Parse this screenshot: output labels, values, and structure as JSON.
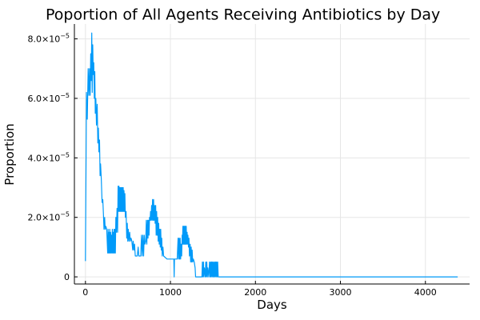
{
  "chart_data": {
    "type": "line",
    "title": "Poportion of All Agents Receiving Antibiotics by Day",
    "xlabel": "Days",
    "ylabel": "Proportion",
    "xlim": [
      -130,
      4520
    ],
    "ylim": [
      -2.4e-06,
      8.5e-05
    ],
    "x_ticks": [
      {
        "value": 0,
        "label": "0"
      },
      {
        "value": 1000,
        "label": "1000"
      },
      {
        "value": 2000,
        "label": "2000"
      },
      {
        "value": 3000,
        "label": "3000"
      },
      {
        "value": 4000,
        "label": "4000"
      }
    ],
    "y_ticks": [
      {
        "value": 0,
        "mant": "0",
        "exp": ""
      },
      {
        "value": 2e-05,
        "mant": "2.0×10",
        "exp": "−5"
      },
      {
        "value": 4e-05,
        "mant": "4.0×10",
        "exp": "−5"
      },
      {
        "value": 6e-05,
        "mant": "6.0×10",
        "exp": "−5"
      },
      {
        "value": 8e-05,
        "mant": "8.0×10",
        "exp": "−5"
      }
    ],
    "grid": true,
    "legend": false,
    "series": [
      {
        "color": "#009af9",
        "values": [
          [
            0,
            5.3e-06
          ],
          [
            12,
            6.2e-05
          ],
          [
            22,
            5.3e-05
          ],
          [
            32,
            7e-05
          ],
          [
            40,
            6.1e-05
          ],
          [
            48,
            7e-05
          ],
          [
            55,
            6.1e-05
          ],
          [
            62,
            7.5e-05
          ],
          [
            68,
            6.6e-05
          ],
          [
            74,
            8.2e-05
          ],
          [
            80,
            6.2e-05
          ],
          [
            86,
            7.8e-05
          ],
          [
            92,
            6.8e-05
          ],
          [
            98,
            7.2e-05
          ],
          [
            104,
            6e-05
          ],
          [
            110,
            6.9e-05
          ],
          [
            116,
            5.5e-05
          ],
          [
            122,
            6e-05
          ],
          [
            130,
            5.1e-05
          ],
          [
            138,
            5.8e-05
          ],
          [
            146,
            4.5e-05
          ],
          [
            152,
            5e-05
          ],
          [
            158,
            4.2e-05
          ],
          [
            166,
            4.6e-05
          ],
          [
            172,
            3.4e-05
          ],
          [
            178,
            3.8e-05
          ],
          [
            186,
            3.3e-05
          ],
          [
            196,
            2.5e-05
          ],
          [
            204,
            2.6e-05
          ],
          [
            212,
            2.1e-05
          ],
          [
            218,
            1.6e-05
          ],
          [
            226,
            2e-05
          ],
          [
            232,
            1.6e-05
          ],
          [
            240,
            1.7e-05
          ],
          [
            250,
            1.6e-05
          ],
          [
            262,
            8e-06
          ],
          [
            266,
            1.6e-05
          ],
          [
            272,
            8e-06
          ],
          [
            276,
            1.5e-05
          ],
          [
            282,
            8e-06
          ],
          [
            286,
            1.6e-05
          ],
          [
            292,
            8e-06
          ],
          [
            296,
            1.5e-05
          ],
          [
            302,
            8e-06
          ],
          [
            306,
            1.4e-05
          ],
          [
            312,
            8e-06
          ],
          [
            316,
            1.6e-05
          ],
          [
            322,
            8e-06
          ],
          [
            326,
            1.5e-05
          ],
          [
            332,
            8e-06
          ],
          [
            336,
            1.6e-05
          ],
          [
            342,
            8e-06
          ],
          [
            346,
            1.6e-05
          ],
          [
            352,
            8e-06
          ],
          [
            358,
            2e-05
          ],
          [
            364,
            1.5e-05
          ],
          [
            372,
            2.3e-05
          ],
          [
            378,
            1.5e-05
          ],
          [
            384,
            3.05e-05
          ],
          [
            388,
            2.2e-05
          ],
          [
            394,
            3.05e-05
          ],
          [
            398,
            2.2e-05
          ],
          [
            404,
            3e-05
          ],
          [
            408,
            2.2e-05
          ],
          [
            414,
            3e-05
          ],
          [
            418,
            2.2e-05
          ],
          [
            424,
            3e-05
          ],
          [
            428,
            2.2e-05
          ],
          [
            434,
            3e-05
          ],
          [
            438,
            2.2e-05
          ],
          [
            444,
            3e-05
          ],
          [
            448,
            2.2e-05
          ],
          [
            454,
            2.9e-05
          ],
          [
            458,
            2.2e-05
          ],
          [
            464,
            2.8e-05
          ],
          [
            470,
            2e-05
          ],
          [
            478,
            2.2e-05
          ],
          [
            486,
            1.3e-05
          ],
          [
            492,
            1.8e-05
          ],
          [
            498,
            1.2e-05
          ],
          [
            504,
            1.6e-05
          ],
          [
            512,
            1.2e-05
          ],
          [
            520,
            1.5e-05
          ],
          [
            528,
            1.2e-05
          ],
          [
            536,
            1.3e-05
          ],
          [
            546,
            1.2e-05
          ],
          [
            556,
            9e-06
          ],
          [
            562,
            1.2e-05
          ],
          [
            570,
            9e-06
          ],
          [
            578,
            1.1e-05
          ],
          [
            586,
            7e-06
          ],
          [
            610,
            7e-06
          ],
          [
            620,
            1e-05
          ],
          [
            628,
            7e-06
          ],
          [
            650,
            7e-06
          ],
          [
            660,
            1.4e-05
          ],
          [
            668,
            7e-06
          ],
          [
            676,
            1.4e-05
          ],
          [
            684,
            7e-06
          ],
          [
            692,
            1.4e-05
          ],
          [
            700,
            1.1e-05
          ],
          [
            710,
            1.2e-05
          ],
          [
            716,
            1.9e-05
          ],
          [
            722,
            1.1e-05
          ],
          [
            730,
            1.9e-05
          ],
          [
            736,
            1.3e-05
          ],
          [
            742,
            1.9e-05
          ],
          [
            748,
            1.4e-05
          ],
          [
            754,
            2e-05
          ],
          [
            760,
            1.9e-05
          ],
          [
            766,
            2.2e-05
          ],
          [
            772,
            1.9e-05
          ],
          [
            778,
            2.4e-05
          ],
          [
            784,
            1.9e-05
          ],
          [
            790,
            2.6e-05
          ],
          [
            796,
            1.9e-05
          ],
          [
            802,
            2.6e-05
          ],
          [
            808,
            1.9e-05
          ],
          [
            814,
            2.4e-05
          ],
          [
            820,
            1.8e-05
          ],
          [
            826,
            2.4e-05
          ],
          [
            832,
            1.4e-05
          ],
          [
            838,
            2.2e-05
          ],
          [
            844,
            1.4e-05
          ],
          [
            850,
            2e-05
          ],
          [
            856,
            1.2e-05
          ],
          [
            862,
            1.8e-05
          ],
          [
            868,
            1.1e-05
          ],
          [
            874,
            1.6e-05
          ],
          [
            880,
            1e-05
          ],
          [
            886,
            1.6e-05
          ],
          [
            892,
            9e-06
          ],
          [
            898,
            1.3e-05
          ],
          [
            904,
            7e-06
          ],
          [
            912,
            1e-05
          ],
          [
            920,
            7e-06
          ],
          [
            960,
            6e-06
          ],
          [
            1000,
            6e-06
          ],
          [
            1040,
            6e-06
          ],
          [
            1044,
            0
          ],
          [
            1048,
            6e-06
          ],
          [
            1080,
            6e-06
          ],
          [
            1090,
            1.3e-05
          ],
          [
            1096,
            6e-06
          ],
          [
            1102,
            1.3e-05
          ],
          [
            1108,
            6e-06
          ],
          [
            1114,
            1.3e-05
          ],
          [
            1120,
            6e-06
          ],
          [
            1126,
            1.1e-05
          ],
          [
            1132,
            7e-06
          ],
          [
            1138,
            1.4e-05
          ],
          [
            1142,
            1.1e-05
          ],
          [
            1146,
            1.7e-05
          ],
          [
            1150,
            1.1e-05
          ],
          [
            1154,
            1.7e-05
          ],
          [
            1158,
            1.1e-05
          ],
          [
            1162,
            1.7e-05
          ],
          [
            1166,
            1.1e-05
          ],
          [
            1170,
            1.7e-05
          ],
          [
            1174,
            1.1e-05
          ],
          [
            1178,
            1.7e-05
          ],
          [
            1182,
            1.1e-05
          ],
          [
            1186,
            1.7e-05
          ],
          [
            1190,
            1.1e-05
          ],
          [
            1196,
            1.5e-05
          ],
          [
            1200,
            1.1e-05
          ],
          [
            1206,
            1.4e-05
          ],
          [
            1212,
            1e-05
          ],
          [
            1218,
            1.3e-05
          ],
          [
            1224,
            7e-06
          ],
          [
            1232,
            1.1e-05
          ],
          [
            1238,
            5e-06
          ],
          [
            1244,
            1e-05
          ],
          [
            1250,
            5e-06
          ],
          [
            1256,
            9e-06
          ],
          [
            1262,
            5e-06
          ],
          [
            1270,
            6e-06
          ],
          [
            1280,
            5e-06
          ],
          [
            1290,
            3e-06
          ],
          [
            1296,
            0
          ],
          [
            1340,
            0
          ],
          [
            1370,
            0
          ],
          [
            1376,
            5e-06
          ],
          [
            1382,
            0
          ],
          [
            1388,
            5e-06
          ],
          [
            1394,
            0
          ],
          [
            1400,
            3e-06
          ],
          [
            1410,
            0
          ],
          [
            1416,
            5e-06
          ],
          [
            1422,
            0
          ],
          [
            1428,
            5e-06
          ],
          [
            1434,
            0
          ],
          [
            1440,
            3e-06
          ],
          [
            1450,
            0
          ],
          [
            1460,
            5e-06
          ],
          [
            1466,
            0
          ],
          [
            1472,
            5e-06
          ],
          [
            1478,
            0
          ],
          [
            1484,
            5e-06
          ],
          [
            1490,
            0
          ],
          [
            1496,
            5e-06
          ],
          [
            1502,
            0
          ],
          [
            1508,
            5e-06
          ],
          [
            1514,
            0
          ],
          [
            1520,
            5e-06
          ],
          [
            1526,
            0
          ],
          [
            1532,
            5e-06
          ],
          [
            1538,
            0
          ],
          [
            1544,
            5e-06
          ],
          [
            1550,
            0
          ],
          [
            1556,
            5e-06
          ],
          [
            1562,
            0
          ],
          [
            4380,
            0
          ]
        ]
      }
    ]
  }
}
